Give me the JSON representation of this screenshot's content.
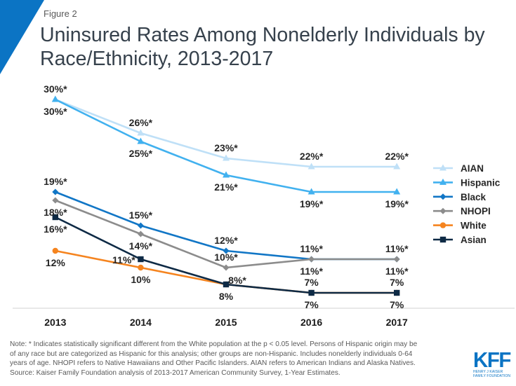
{
  "figure_label": "Figure 2",
  "title_lines": [
    "Uninsured Rates Among Nonelderly Individuals by",
    "Race/Ethnicity, 2013-2017"
  ],
  "colors": {
    "brand_blue": "#0b74c4",
    "axis_line": "#d9d9d9"
  },
  "chart_data": {
    "type": "line",
    "title": "Uninsured Rates Among Nonelderly Individuals by Race/Ethnicity, 2013-2017",
    "xlabel": "",
    "ylabel": "",
    "categories": [
      "2013",
      "2014",
      "2015",
      "2016",
      "2017"
    ],
    "ylim": [
      5,
      32
    ],
    "grid": false,
    "legend_position": "right",
    "series": [
      {
        "name": "AIAN",
        "color": "#bfe0f7",
        "marker": "triangle",
        "values": [
          30,
          26,
          23,
          22,
          22
        ],
        "labels": [
          "30%*",
          "26%*",
          "23%*",
          "22%*",
          "22%*"
        ],
        "label_pos": [
          "above",
          "above",
          "above",
          "above",
          "above"
        ]
      },
      {
        "name": "Hispanic",
        "color": "#41b1ef",
        "marker": "triangle",
        "values": [
          30,
          25,
          21,
          19,
          19
        ],
        "labels": [
          "30%*",
          "25%*",
          "21%*",
          "19%*",
          "19%*"
        ],
        "label_pos": [
          "below",
          "below",
          "below",
          "below",
          "below"
        ]
      },
      {
        "name": "Black",
        "color": "#1176c6",
        "marker": "diamond",
        "values": [
          19,
          15,
          12,
          11,
          11
        ],
        "labels": [
          "19%*",
          "15%*",
          "12%*",
          "11%*",
          "11%*"
        ],
        "label_pos": [
          "above",
          "above",
          "above",
          "above",
          "above"
        ]
      },
      {
        "name": "NHOPI",
        "color": "#8c8c8c",
        "marker": "diamond",
        "values": [
          18,
          14,
          10,
          11,
          11
        ],
        "labels": [
          "18%*",
          "14%*",
          "10%*",
          "11%*",
          "11%*"
        ],
        "label_pos": [
          "below",
          "below",
          "above",
          "below",
          "below"
        ]
      },
      {
        "name": "White",
        "color": "#f5841f",
        "marker": "circle",
        "values": [
          12,
          10,
          8,
          7,
          7
        ],
        "labels": [
          "12%",
          "10%",
          "8%",
          "7%",
          "7%"
        ],
        "label_pos": [
          "below",
          "below",
          "below",
          "below",
          "above"
        ]
      },
      {
        "name": "Asian",
        "color": "#0e2a45",
        "marker": "square",
        "values": [
          16,
          11,
          8,
          7,
          7
        ],
        "labels": [
          "16%*",
          "11%*",
          "8%*",
          "7%",
          "7%"
        ],
        "label_pos": [
          "below",
          "left",
          "right",
          "above",
          "below"
        ]
      }
    ]
  },
  "footnote_lines": [
    "Note: * Indicates statistically significant different from the White population at the p < 0.05 level. Persons of Hispanic origin may be",
    "of any race but are categorized as Hispanic for this analysis; other groups are non-Hispanic. Includes nonelderly individuals 0-64",
    "years of age. NHOPI refers to Native Hawaiians and Other Pacific Islanders. AIAN refers to American Indians and Alaska Natives.",
    "Source: Kaiser Family Foundation analysis of 2013-2017 American Community Survey, 1-Year Estimates."
  ],
  "logo": {
    "mark": "KFF",
    "subtitle_lines": [
      "HENRY J KAISER",
      "FAMILY FOUNDATION"
    ]
  }
}
